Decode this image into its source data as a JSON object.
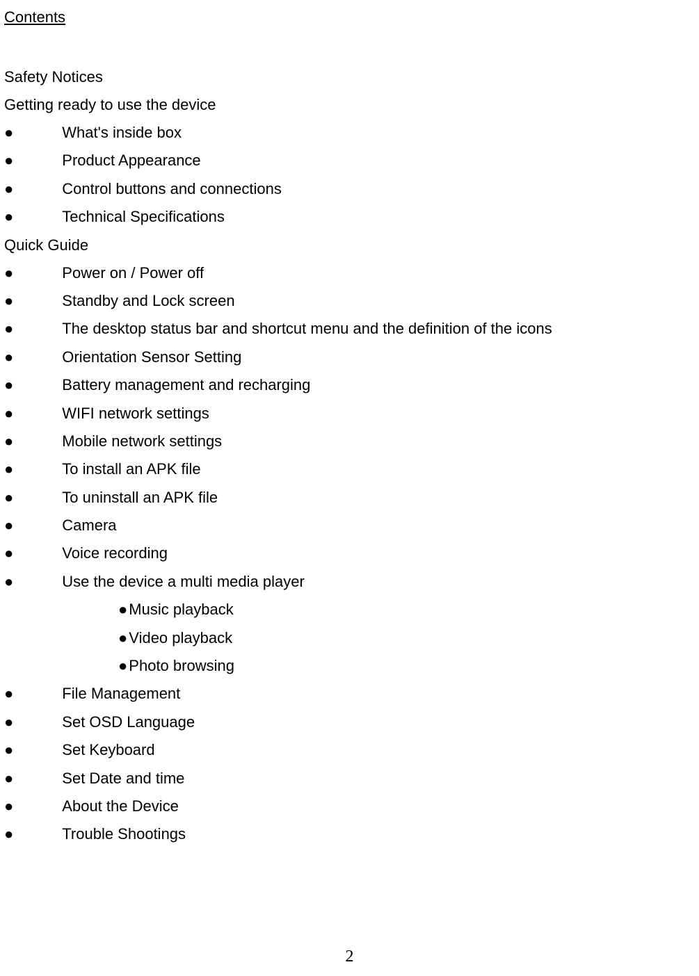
{
  "title": "Contents",
  "sections": [
    {
      "heading": "Safety Notices",
      "items": []
    },
    {
      "heading": "Getting ready to use the device",
      "items": [
        {
          "text": "What's inside box"
        },
        {
          "text": "Product Appearance"
        },
        {
          "text": "Control buttons and connections"
        },
        {
          "text": "Technical Specifications"
        }
      ]
    },
    {
      "heading": "Quick Guide",
      "items": [
        {
          "text": "Power on / Power off"
        },
        {
          "text": "Standby and Lock screen"
        },
        {
          "text": "The desktop status bar and shortcut menu and the definition of the icons"
        },
        {
          "text": "Orientation Sensor Setting"
        },
        {
          "text": "Battery management and recharging"
        },
        {
          "text": "WIFI network settings"
        },
        {
          "text": "Mobile network settings"
        },
        {
          "text": "To install an APK file"
        },
        {
          "text": "To uninstall an APK file"
        },
        {
          "text": "Camera"
        },
        {
          "text": "Voice recording"
        },
        {
          "text": "Use the device a multi media player",
          "subitems": [
            {
              "text": "Music playback"
            },
            {
              "text": "Video playback"
            },
            {
              "text": "Photo browsing"
            }
          ]
        },
        {
          "text": "File Management"
        },
        {
          "text": "Set OSD Language"
        },
        {
          "text": "Set Keyboard"
        },
        {
          "text": "Set Date and time"
        },
        {
          "text": "About the Device"
        },
        {
          "text": "Trouble Shootings"
        }
      ]
    }
  ],
  "page_number": "2",
  "colors": {
    "text": "#000000",
    "background": "#ffffff"
  },
  "typography": {
    "font_family": "Arial, Helvetica, sans-serif",
    "font_size_pt": 16,
    "page_number_font": "Times New Roman",
    "page_number_size_pt": 18
  },
  "bullet_glyph": "●"
}
